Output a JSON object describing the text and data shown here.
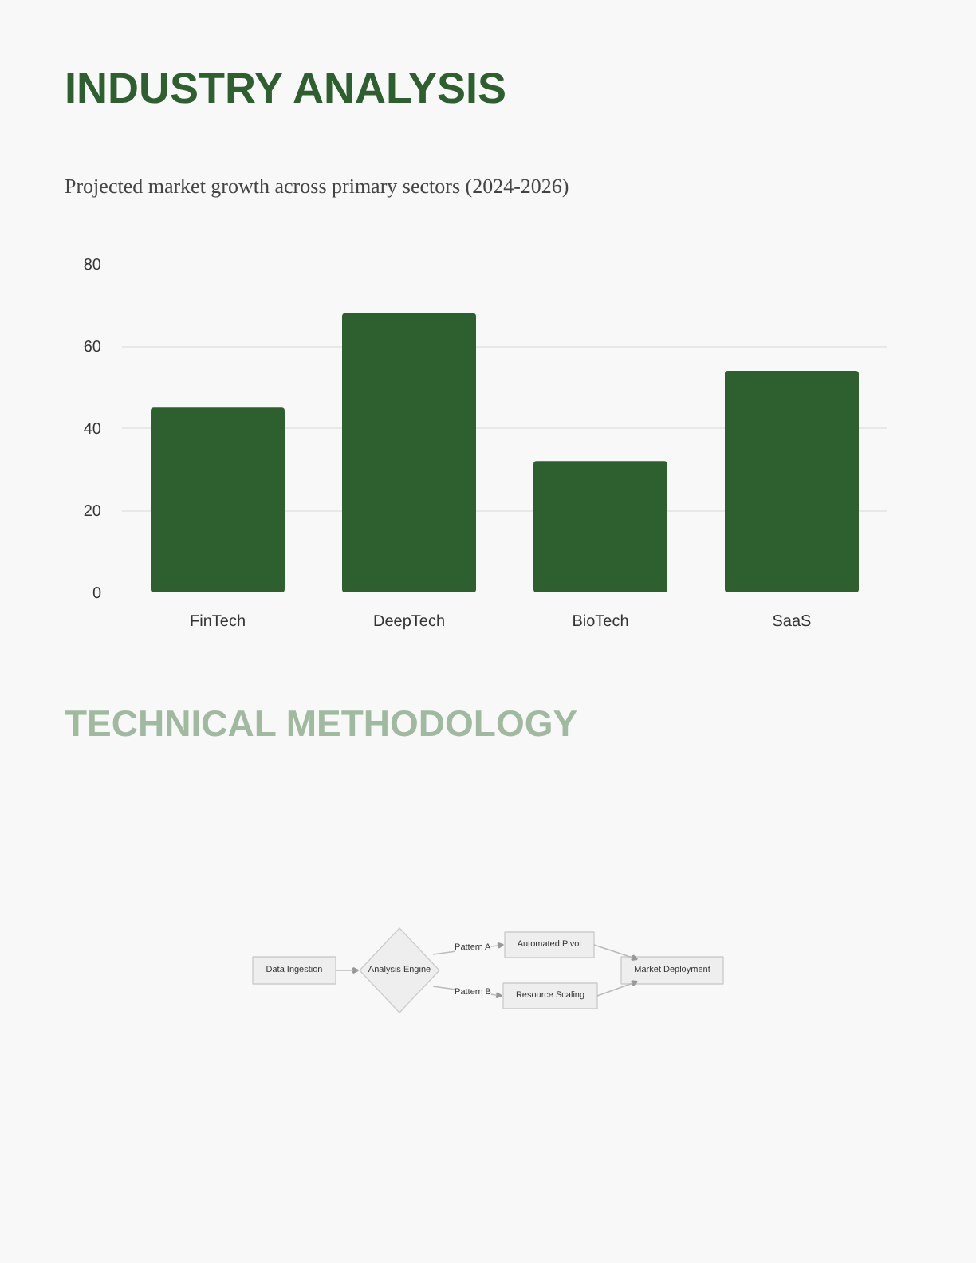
{
  "chart_data": [
    {
      "type": "bar",
      "title": "INDUSTRY ANALYSIS",
      "subtitle": "Projected market growth across primary sectors (2024-2026)",
      "categories": [
        "FinTech",
        "DeepTech",
        "BioTech",
        "SaaS"
      ],
      "values": [
        45,
        68,
        32,
        54
      ],
      "color": "#2d5f2f",
      "ylim": [
        0,
        80
      ],
      "yticks": [
        0,
        20,
        40,
        60,
        80
      ],
      "grid": "y"
    },
    {
      "type": "other",
      "title": "TECHNICAL METHODOLOGY",
      "annotations": [
        "Data Ingestion",
        "Analysis Engine",
        "Pattern A",
        "Automated Pivot",
        "Pattern B",
        "Resource Scaling",
        "Market Deployment"
      ]
    }
  ]
}
